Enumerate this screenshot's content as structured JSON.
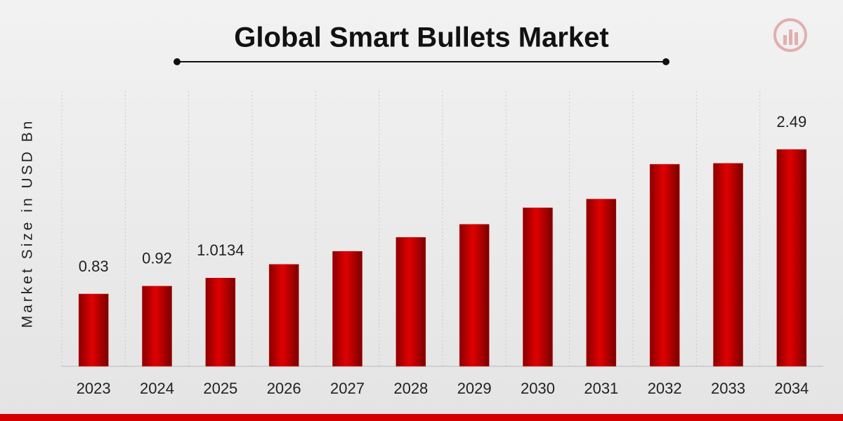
{
  "chart_data": {
    "type": "bar",
    "title": "Global Smart Bullets Market",
    "y_label": "Market Size in USD Bn",
    "categories": [
      "2023",
      "2024",
      "2025",
      "2026",
      "2027",
      "2028",
      "2029",
      "2030",
      "2031",
      "2032",
      "2033",
      "2034"
    ],
    "values": [
      0.83,
      0.92,
      1.0134,
      1.17,
      1.32,
      1.48,
      1.63,
      1.82,
      1.92,
      2.32,
      2.33,
      2.49
    ],
    "value_labels": [
      "0.83",
      "0.92",
      "1.0134",
      null,
      null,
      null,
      null,
      null,
      null,
      null,
      null,
      "2.49"
    ],
    "color": "#d40000"
  }
}
